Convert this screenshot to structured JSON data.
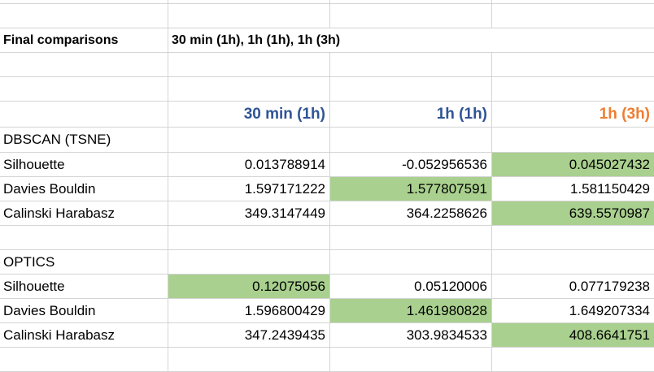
{
  "title_row": {
    "label": "Final comparisons",
    "value": "30 min (1h), 1h (1h), 1h (3h)"
  },
  "columns": {
    "col1": "30 min (1h)",
    "col2": "1h (1h)",
    "col3": "1h (3h)"
  },
  "colors": {
    "col1_header": "#2f5496",
    "col2_header": "#2f5496",
    "col3_header": "#ed7d31",
    "best_fill": "#a9d08e"
  },
  "dbscan": {
    "section": "DBSCAN (TSNE)",
    "rows": [
      {
        "metric": "Silhouette",
        "v1": "0.013788914",
        "v2": "-0.052956536",
        "v3": "0.045027432",
        "best": 3
      },
      {
        "metric": "Davies Bouldin",
        "v1": "1.597171222",
        "v2": "1.577807591",
        "v3": "1.581150429",
        "best": 2
      },
      {
        "metric": "Calinski Harabasz",
        "v1": "349.3147449",
        "v2": "364.2258626",
        "v3": "639.5570987",
        "best": 3
      }
    ]
  },
  "optics": {
    "section": "OPTICS",
    "rows": [
      {
        "metric": "Silhouette",
        "v1": "0.12075056",
        "v2": "0.05120006",
        "v3": "0.077179238",
        "best": 1
      },
      {
        "metric": "Davies Bouldin",
        "v1": "1.596800429",
        "v2": "1.461980828",
        "v3": "1.649207334",
        "best": 2
      },
      {
        "metric": "Calinski Harabasz",
        "v1": "347.2439435",
        "v2": "303.9834533",
        "v3": "408.6641751",
        "best": 3
      }
    ]
  }
}
